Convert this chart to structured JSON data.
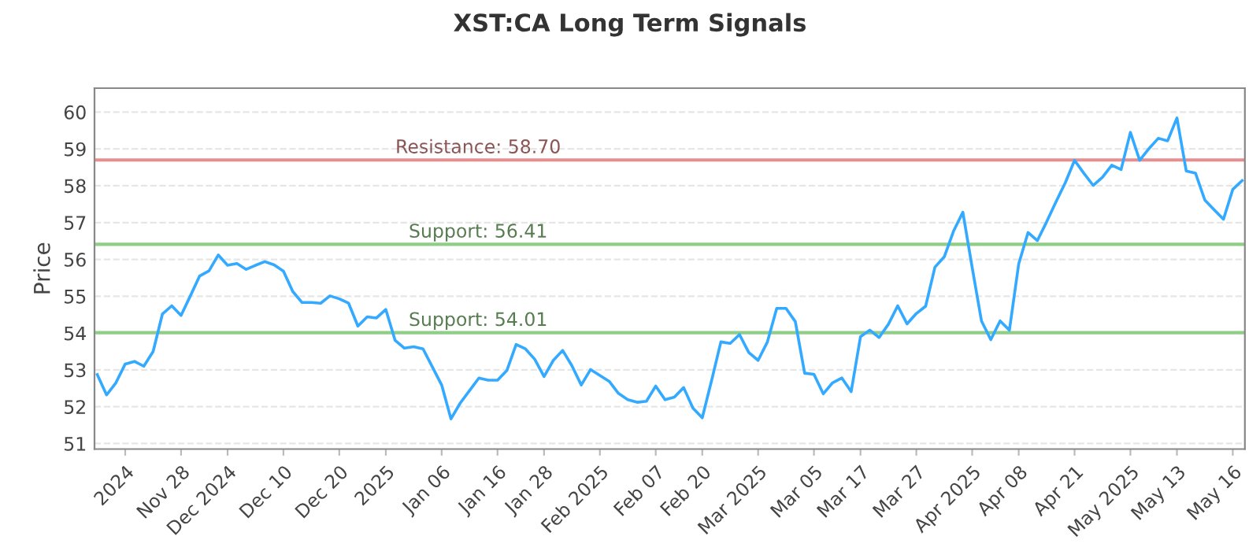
{
  "chart_data": {
    "type": "line",
    "title": "XST:CA Long Term Signals",
    "ylabel": "Price",
    "categories": [
      null,
      null,
      null,
      "2024",
      null,
      null,
      null,
      null,
      null,
      "Nov 28",
      null,
      null,
      null,
      null,
      "Dec 2024",
      null,
      null,
      null,
      null,
      null,
      "Dec 10",
      null,
      null,
      null,
      null,
      null,
      "Dec 20",
      null,
      null,
      null,
      null,
      "2025",
      null,
      null,
      null,
      null,
      null,
      "Jan 06",
      null,
      null,
      null,
      null,
      null,
      "Jan 16",
      null,
      null,
      null,
      null,
      "Jan 28",
      null,
      null,
      null,
      null,
      null,
      "Feb 2025",
      null,
      null,
      null,
      null,
      null,
      "Feb 07",
      null,
      null,
      null,
      null,
      "Feb 20",
      null,
      null,
      null,
      null,
      null,
      "Mar 2025",
      null,
      null,
      null,
      null,
      null,
      "Mar 05",
      null,
      null,
      null,
      null,
      "Mar 17",
      null,
      null,
      null,
      null,
      null,
      "Mar 27",
      null,
      null,
      null,
      null,
      null,
      "Apr 2025",
      null,
      null,
      null,
      null,
      "Apr 08",
      null,
      null,
      null,
      null,
      null,
      "Apr 21",
      null,
      null,
      null,
      null,
      null,
      "May 2025",
      null,
      null,
      null,
      null,
      "May 13",
      null,
      null,
      null,
      null,
      null,
      "May 16",
      null
    ],
    "series": [
      {
        "color": "#33aaff",
        "values": [
          52.87,
          52.32,
          52.65,
          53.16,
          53.23,
          53.1,
          53.5,
          54.52,
          54.74,
          54.48,
          55.01,
          55.55,
          55.69,
          56.12,
          55.84,
          55.89,
          55.73,
          55.84,
          55.94,
          55.85,
          55.68,
          55.13,
          54.83,
          54.83,
          54.81,
          55.01,
          54.93,
          54.81,
          54.19,
          54.44,
          54.41,
          54.64,
          53.8,
          53.59,
          53.63,
          53.57,
          53.08,
          52.59,
          51.67,
          52.1,
          52.44,
          52.78,
          52.72,
          52.72,
          52.98,
          53.69,
          53.57,
          53.29,
          52.82,
          53.26,
          53.53,
          53.11,
          52.59,
          53.01,
          52.85,
          52.69,
          52.36,
          52.19,
          52.12,
          52.15,
          52.56,
          52.19,
          52.26,
          52.52,
          51.96,
          51.7,
          52.71,
          53.76,
          53.72,
          53.96,
          53.47,
          53.26,
          53.76,
          54.67,
          54.67,
          54.31,
          52.91,
          52.88,
          52.35,
          52.65,
          52.78,
          52.41,
          53.9,
          54.08,
          53.88,
          54.24,
          54.74,
          54.25,
          54.53,
          54.73,
          55.79,
          56.07,
          56.77,
          57.28,
          55.78,
          54.33,
          53.82,
          54.33,
          54.08,
          55.88,
          56.73,
          56.51,
          57.02,
          57.56,
          58.08,
          58.69,
          58.34,
          58.01,
          58.23,
          58.56,
          58.44,
          59.45,
          58.69,
          59.01,
          59.29,
          59.22,
          59.84,
          58.4,
          58.34,
          57.61,
          57.35,
          57.09,
          57.9,
          58.14
        ]
      }
    ],
    "ylim": [
      50.85,
      60.65
    ],
    "yticks": [
      51,
      52,
      53,
      54,
      55,
      56,
      57,
      58,
      59,
      60
    ],
    "grid": "y",
    "legend": false,
    "marker": "none",
    "line_style": "solid",
    "ref_lines": [
      {
        "axis": "y",
        "value": 58.7,
        "label": "Resistance: 58.70",
        "color": "#e88e8e"
      },
      {
        "axis": "y",
        "value": 56.41,
        "label": "Support: 56.41",
        "color": "#8fce86"
      },
      {
        "axis": "y",
        "value": 54.01,
        "label": "Support: 54.01",
        "color": "#8fce86"
      }
    ]
  }
}
